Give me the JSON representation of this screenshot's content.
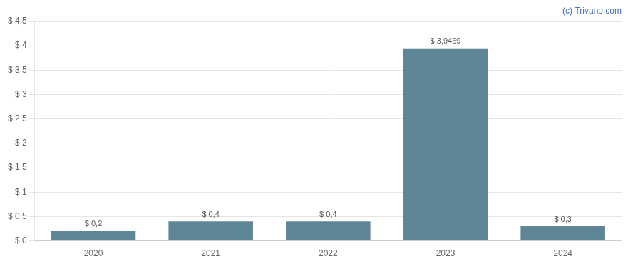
{
  "chart_data": {
    "type": "bar",
    "categories": [
      "2020",
      "2021",
      "2022",
      "2023",
      "2024"
    ],
    "values": [
      0.2,
      0.4,
      0.4,
      3.9469,
      0.3
    ],
    "value_labels": [
      "$ 0,2",
      "$ 0,4",
      "$ 0,4",
      "$ 3,9469",
      "$ 0,3"
    ],
    "data_labels": true,
    "color": "#5f8696",
    "ylim": [
      0,
      4.5
    ],
    "yticks": [
      {
        "value": 0,
        "label": "$ 0"
      },
      {
        "value": 0.5,
        "label": "$ 0,5"
      },
      {
        "value": 1.0,
        "label": "$ 1"
      },
      {
        "value": 1.5,
        "label": "$ 1,5"
      },
      {
        "value": 2.0,
        "label": "$ 2"
      },
      {
        "value": 2.5,
        "label": "$ 2,5"
      },
      {
        "value": 3.0,
        "label": "$ 3"
      },
      {
        "value": 3.5,
        "label": "$ 3,5"
      },
      {
        "value": 4.0,
        "label": "$ 4"
      },
      {
        "value": 4.5,
        "label": "$ 4,5"
      }
    ],
    "grid": true,
    "annotations": [
      {
        "text": "(c) Trivano.com",
        "color": "#4472c4"
      }
    ]
  }
}
